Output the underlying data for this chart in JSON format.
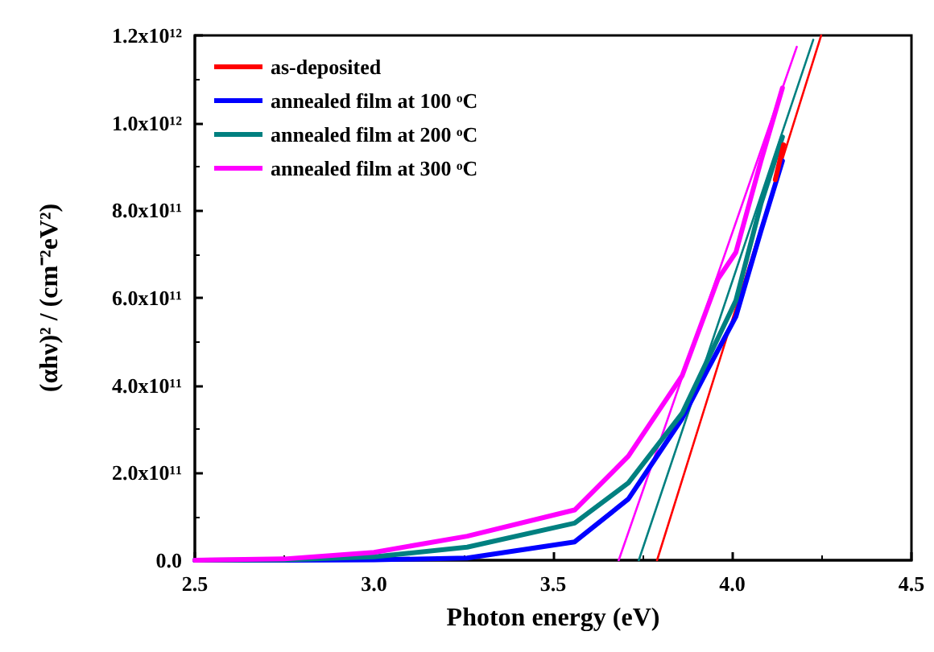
{
  "chart_data": {
    "type": "line",
    "xlabel": "Photon energy (eV)",
    "ylabel": "(αhν)² / (cm⁻²eV²)",
    "xlim": [
      2.5,
      4.5
    ],
    "xticks": [
      2.5,
      {
        "value": 3,
        "label": "3.0"
      },
      3.5,
      {
        "value": 4,
        "label": "4.0"
      },
      4.5
    ],
    "ylim": [
      0,
      1200000000000.0
    ],
    "yticks": [
      {
        "value": 0,
        "label": "0.0"
      },
      {
        "value": 200000000000.0,
        "label": "2.0x10¹¹"
      },
      {
        "value": 400000000000.0,
        "label": "4.0x10¹¹"
      },
      {
        "value": 600000000000.0,
        "label": "6.0x10¹¹"
      },
      {
        "value": 800000000000.0,
        "label": "8.0x10¹¹"
      },
      {
        "value": 1000000000000.0,
        "label": "1.0x10¹²"
      },
      {
        "value": 1200000000000.0,
        "label": "1.2x10¹²"
      }
    ],
    "grid": false,
    "legend": "top left",
    "marker": "none",
    "line_style": "solid",
    "series": [
      {
        "name": "as-deposited",
        "color": "#ff0000",
        "x": [
          4.12,
          4.143
        ],
        "values": [
          870000000000.0,
          950000000000.0
        ]
      },
      {
        "name": "annealed film at 100 ᵒC",
        "color": "#0000ff",
        "x": [
          2.5,
          2.75,
          3.0,
          3.26,
          3.56,
          3.71,
          3.86,
          3.93,
          4.01,
          4.08,
          4.14
        ],
        "values": [
          0,
          0,
          1000000000.0,
          5000000000.0,
          42000000000.0,
          140000000000.0,
          324000000000.0,
          434000000000.0,
          557000000000.0,
          753000000000.0,
          913000000000.0
        ]
      },
      {
        "name": "annealed film at 200 ᵒC",
        "color": "#008080",
        "x": [
          2.5,
          2.75,
          3.0,
          3.26,
          3.56,
          3.71,
          3.86,
          4.01,
          4.08,
          4.14
        ],
        "values": [
          0,
          1000000000.0,
          8000000000.0,
          30000000000.0,
          85000000000.0,
          177000000000.0,
          336000000000.0,
          594000000000.0,
          815000000000.0,
          968000000000.0
        ]
      },
      {
        "name": "annealed film at 300 ᵒC",
        "color": "#ff00ff",
        "x": [
          2.5,
          2.75,
          3.0,
          3.26,
          3.56,
          3.71,
          3.86,
          3.96,
          4.01,
          4.08,
          4.14
        ],
        "values": [
          0,
          3000000000.0,
          18000000000.0,
          55000000000.0,
          115000000000.0,
          238000000000.0,
          422000000000.0,
          643000000000.0,
          704000000000.0,
          913000000000.0,
          1080000000000.0
        ]
      },
      {
        "type": "line",
        "color": "#ff0000",
        "x": [
          3.79,
          4.248
        ],
        "values": [
          0,
          1200000000000.0
        ]
      },
      {
        "type": "line",
        "color": "#008080",
        "x": [
          3.739,
          4.226
        ],
        "values": [
          0,
          1190000000000.0
        ]
      },
      {
        "type": "line",
        "color": "#ff00ff",
        "x": [
          3.683,
          4.18
        ],
        "values": [
          0,
          1174000000000.0
        ]
      }
    ]
  }
}
